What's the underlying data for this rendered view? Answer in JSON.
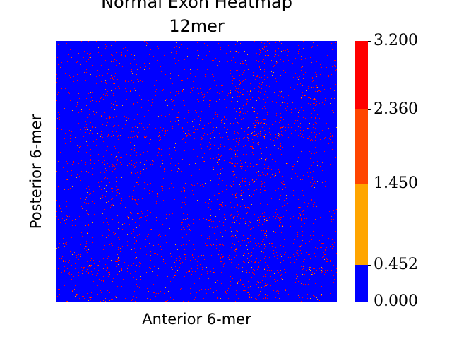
{
  "chart_data": {
    "type": "heatmap",
    "title": [
      "Normal Exon Heatmap",
      "12mer"
    ],
    "xlabel": "Anterior 6-mer",
    "ylabel": "Posterior 6-mer",
    "grid": false,
    "colorbar": {
      "bounds": [
        0.0,
        0.452,
        1.45,
        2.36,
        3.2
      ],
      "tick_labels": [
        "0.000",
        "0.452",
        "1.450",
        "2.360",
        "3.200"
      ],
      "colors": [
        "#0000ff",
        "#ffa500",
        "#ff4500",
        "#ff0000"
      ]
    },
    "dominant_value_range": [
      0.0,
      0.452
    ],
    "sparse_high_value_color": "#ff0000"
  }
}
